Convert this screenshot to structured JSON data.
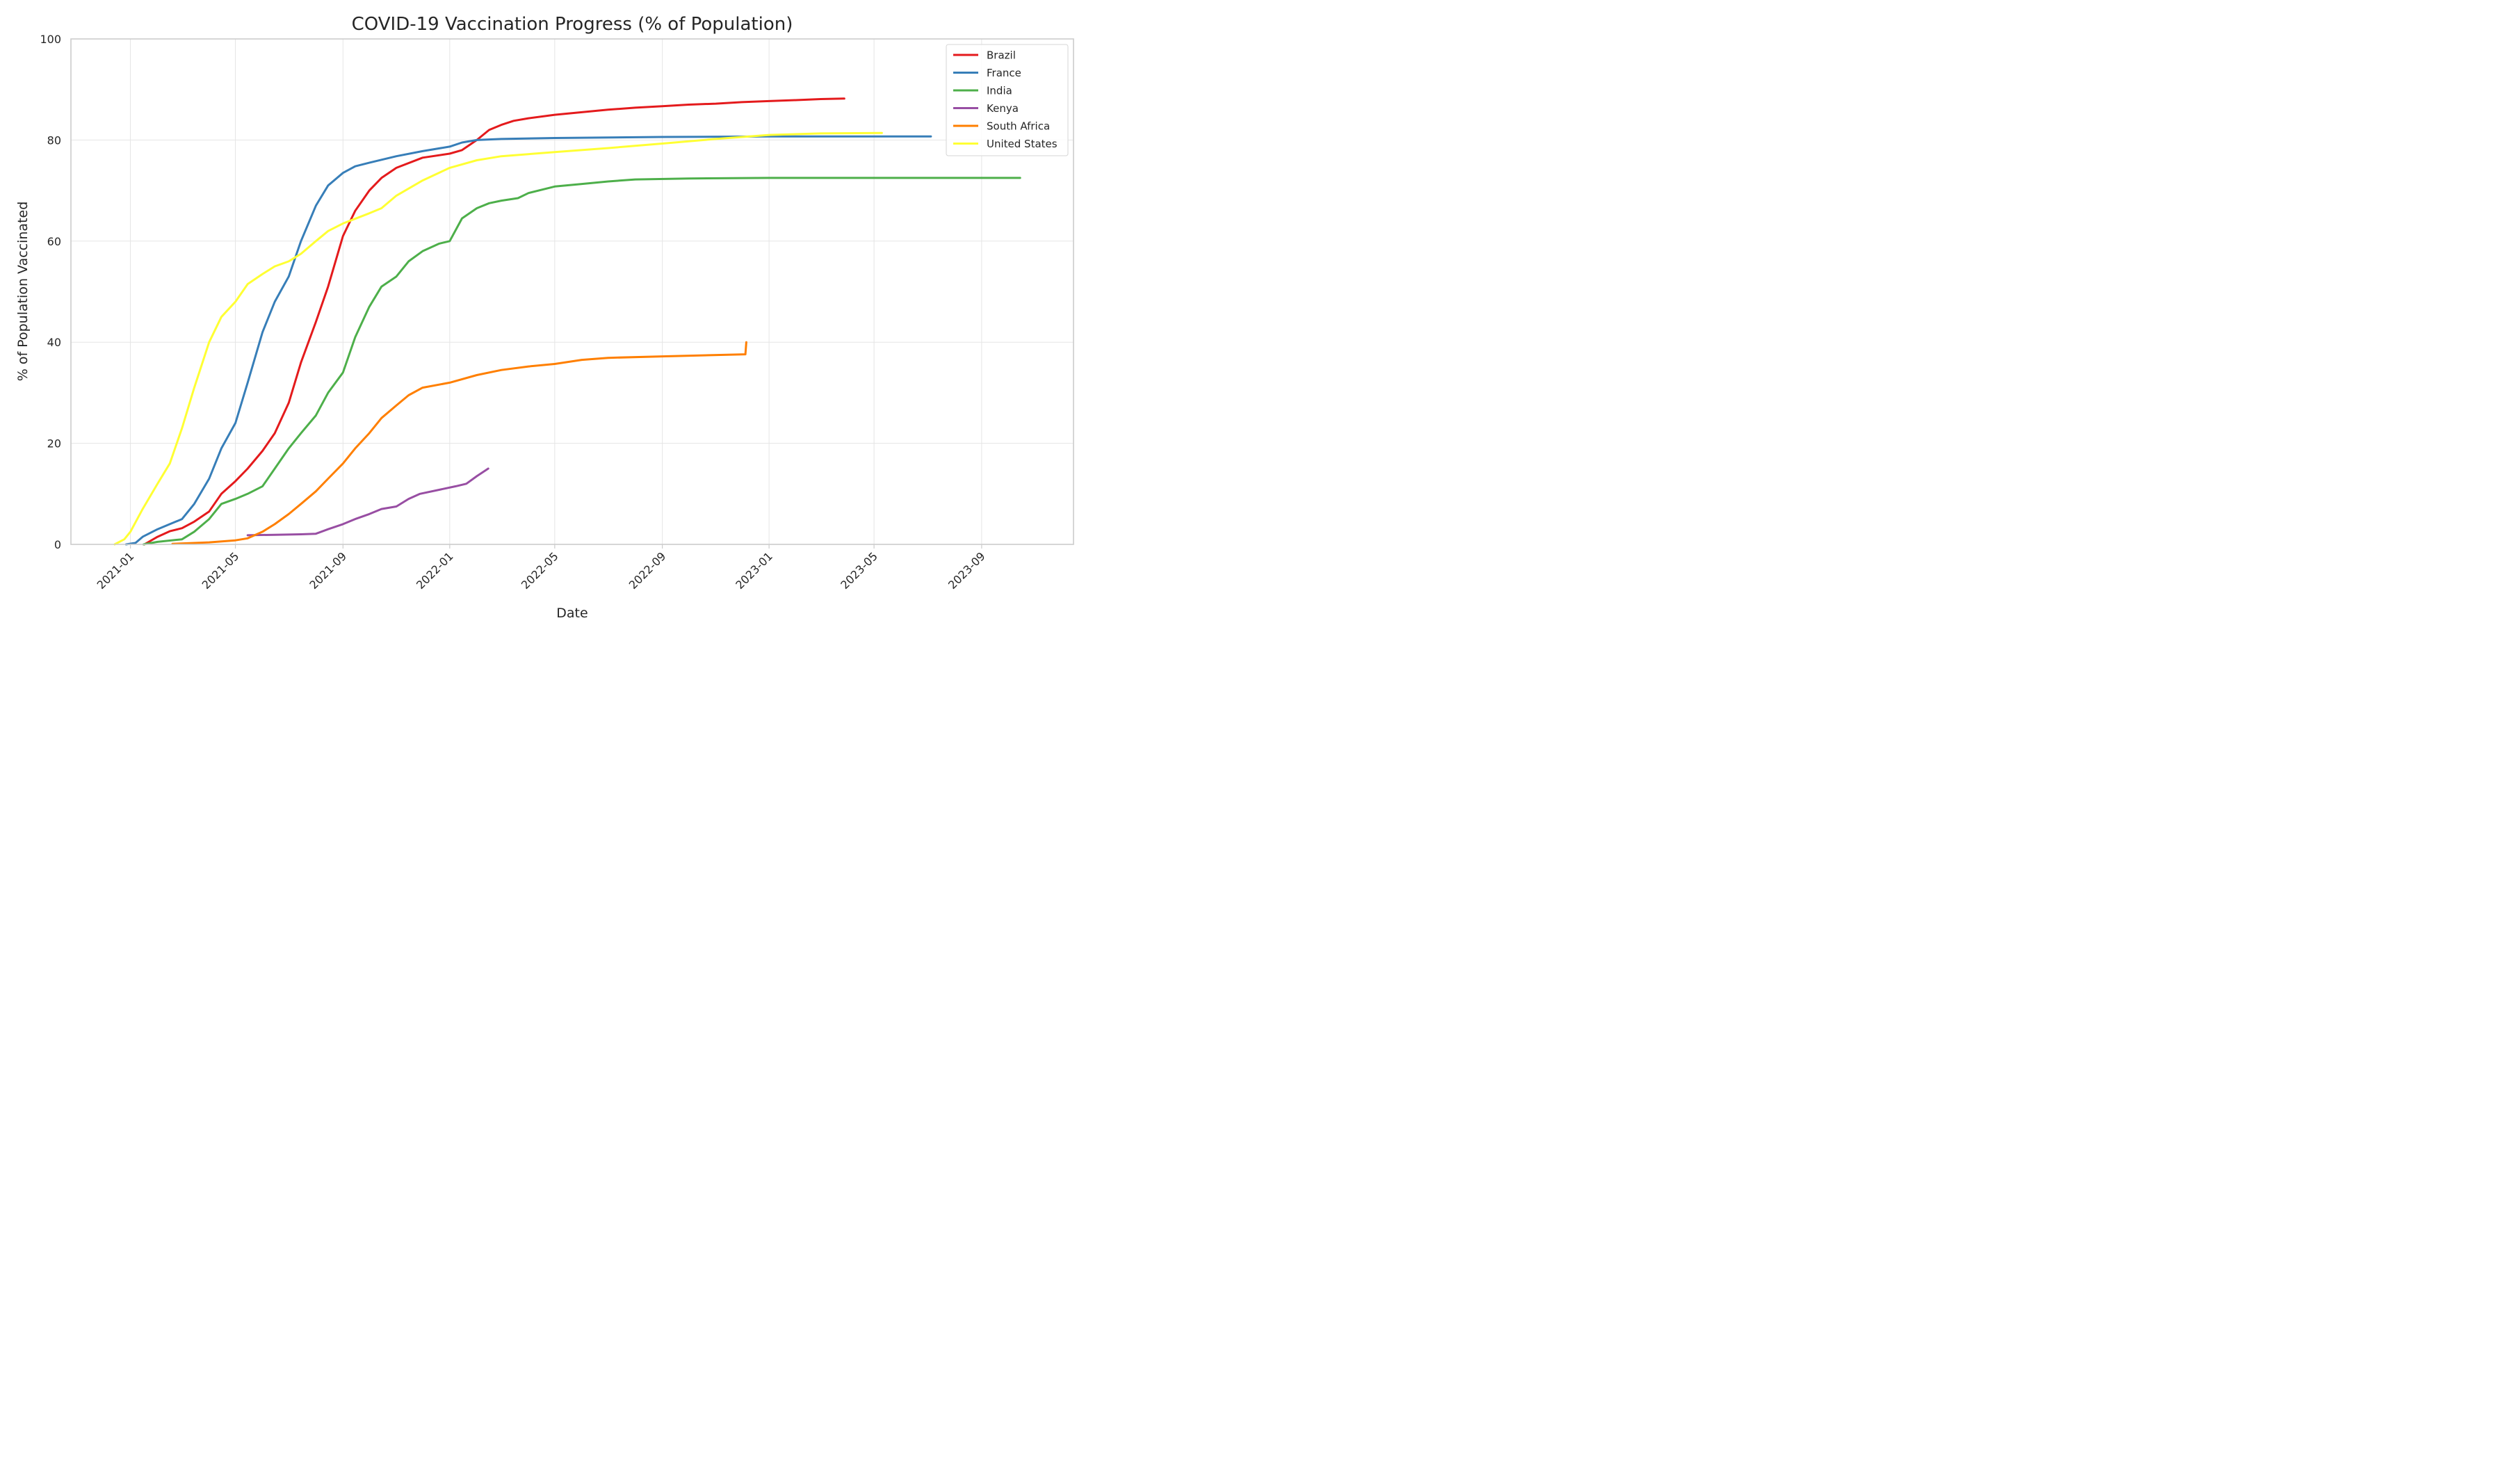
{
  "chart_data": {
    "type": "line",
    "title": "COVID-19 Vaccination Progress (% of Population)",
    "xlabel": "Date",
    "ylabel": "% of Population Vaccinated",
    "xlim": [
      "2020-10-25",
      "2023-12-15"
    ],
    "ylim": [
      0,
      100
    ],
    "yticks": [
      0,
      20,
      40,
      60,
      80,
      100
    ],
    "xticks": [
      "2021-01",
      "2021-05",
      "2021-09",
      "2022-01",
      "2022-05",
      "2022-09",
      "2023-01",
      "2023-05",
      "2023-09"
    ],
    "grid": true,
    "legend_position": "top-right",
    "series": [
      {
        "name": "Brazil",
        "color": "#e41a1c",
        "points": [
          [
            "2021-01-17",
            0
          ],
          [
            "2021-02-01",
            1.5
          ],
          [
            "2021-02-15",
            2.6
          ],
          [
            "2021-03-01",
            3.2
          ],
          [
            "2021-03-15",
            4.5
          ],
          [
            "2021-04-01",
            6.5
          ],
          [
            "2021-04-15",
            10
          ],
          [
            "2021-05-01",
            12.5
          ],
          [
            "2021-05-15",
            15
          ],
          [
            "2021-06-01",
            18.5
          ],
          [
            "2021-06-15",
            22
          ],
          [
            "2021-07-01",
            28
          ],
          [
            "2021-07-15",
            36
          ],
          [
            "2021-08-01",
            44
          ],
          [
            "2021-08-15",
            51
          ],
          [
            "2021-09-01",
            61
          ],
          [
            "2021-09-15",
            66
          ],
          [
            "2021-10-01",
            70
          ],
          [
            "2021-10-15",
            72.5
          ],
          [
            "2021-11-01",
            74.5
          ],
          [
            "2021-12-01",
            76.5
          ],
          [
            "2022-01-01",
            77.3
          ],
          [
            "2022-01-15",
            78
          ],
          [
            "2022-02-01",
            80
          ],
          [
            "2022-02-15",
            82
          ],
          [
            "2022-03-01",
            83
          ],
          [
            "2022-03-15",
            83.8
          ],
          [
            "2022-04-01",
            84.3
          ],
          [
            "2022-05-01",
            85
          ],
          [
            "2022-06-01",
            85.5
          ],
          [
            "2022-07-01",
            86
          ],
          [
            "2022-08-01",
            86.4
          ],
          [
            "2022-09-01",
            86.7
          ],
          [
            "2022-10-01",
            87
          ],
          [
            "2022-11-01",
            87.2
          ],
          [
            "2022-12-01",
            87.5
          ],
          [
            "2023-01-01",
            87.7
          ],
          [
            "2023-02-01",
            87.9
          ],
          [
            "2023-03-01",
            88.1
          ],
          [
            "2023-03-28",
            88.2
          ]
        ]
      },
      {
        "name": "France",
        "color": "#377eb8",
        "points": [
          [
            "2020-12-27",
            0
          ],
          [
            "2021-01-07",
            0.3
          ],
          [
            "2021-01-15",
            1.5
          ],
          [
            "2021-02-01",
            3
          ],
          [
            "2021-02-15",
            4
          ],
          [
            "2021-03-01",
            5
          ],
          [
            "2021-03-15",
            8
          ],
          [
            "2021-04-01",
            13
          ],
          [
            "2021-04-15",
            19
          ],
          [
            "2021-05-01",
            24
          ],
          [
            "2021-05-15",
            32
          ],
          [
            "2021-06-01",
            42
          ],
          [
            "2021-06-15",
            48
          ],
          [
            "2021-07-01",
            53
          ],
          [
            "2021-07-15",
            60
          ],
          [
            "2021-08-01",
            67
          ],
          [
            "2021-08-15",
            71
          ],
          [
            "2021-09-01",
            73.5
          ],
          [
            "2021-09-15",
            74.8
          ],
          [
            "2021-10-01",
            75.5
          ],
          [
            "2021-11-01",
            76.8
          ],
          [
            "2021-12-01",
            77.8
          ],
          [
            "2022-01-01",
            78.7
          ],
          [
            "2022-01-15",
            79.5
          ],
          [
            "2022-02-01",
            80
          ],
          [
            "2022-03-01",
            80.2
          ],
          [
            "2022-05-01",
            80.4
          ],
          [
            "2022-09-01",
            80.6
          ],
          [
            "2023-01-01",
            80.7
          ],
          [
            "2023-07-05",
            80.7
          ]
        ]
      },
      {
        "name": "India",
        "color": "#4daf4a",
        "points": [
          [
            "2021-01-16",
            0
          ],
          [
            "2021-02-01",
            0.5
          ],
          [
            "2021-03-01",
            1
          ],
          [
            "2021-03-15",
            2.5
          ],
          [
            "2021-04-01",
            5
          ],
          [
            "2021-04-15",
            8
          ],
          [
            "2021-05-01",
            9
          ],
          [
            "2021-05-15",
            10
          ],
          [
            "2021-06-01",
            11.5
          ],
          [
            "2021-06-15",
            15
          ],
          [
            "2021-07-01",
            19
          ],
          [
            "2021-07-15",
            22
          ],
          [
            "2021-08-01",
            25.5
          ],
          [
            "2021-08-15",
            30
          ],
          [
            "2021-09-01",
            34
          ],
          [
            "2021-09-15",
            41
          ],
          [
            "2021-10-01",
            47
          ],
          [
            "2021-10-15",
            51
          ],
          [
            "2021-11-01",
            53
          ],
          [
            "2021-11-15",
            56
          ],
          [
            "2021-12-01",
            58
          ],
          [
            "2021-12-20",
            59.5
          ],
          [
            "2022-01-01",
            60
          ],
          [
            "2022-01-15",
            64.5
          ],
          [
            "2022-02-01",
            66.5
          ],
          [
            "2022-02-15",
            67.5
          ],
          [
            "2022-03-01",
            68
          ],
          [
            "2022-03-20",
            68.5
          ],
          [
            "2022-04-01",
            69.5
          ],
          [
            "2022-05-01",
            70.8
          ],
          [
            "2022-06-01",
            71.3
          ],
          [
            "2022-07-01",
            71.8
          ],
          [
            "2022-08-01",
            72.2
          ],
          [
            "2022-10-01",
            72.4
          ],
          [
            "2023-01-01",
            72.5
          ],
          [
            "2023-10-15",
            72.5
          ]
        ]
      },
      {
        "name": "Kenya",
        "color": "#984ea3",
        "points": [
          [
            "2021-05-15",
            1.8
          ],
          [
            "2021-06-15",
            1.9
          ],
          [
            "2021-07-15",
            2
          ],
          [
            "2021-08-01",
            2.1
          ],
          [
            "2021-08-15",
            3
          ],
          [
            "2021-09-01",
            4
          ],
          [
            "2021-09-15",
            5
          ],
          [
            "2021-10-01",
            6
          ],
          [
            "2021-10-15",
            7
          ],
          [
            "2021-11-01",
            7.5
          ],
          [
            "2021-11-15",
            9
          ],
          [
            "2021-11-28",
            10
          ],
          [
            "2022-01-08",
            11.5
          ],
          [
            "2022-01-20",
            12
          ],
          [
            "2022-02-01",
            13.5
          ],
          [
            "2022-02-14",
            15
          ]
        ]
      },
      {
        "name": "South Africa",
        "color": "#ff7f00",
        "points": [
          [
            "2021-02-18",
            0.1
          ],
          [
            "2021-04-01",
            0.4
          ],
          [
            "2021-05-01",
            0.8
          ],
          [
            "2021-05-15",
            1.2
          ],
          [
            "2021-06-01",
            2.5
          ],
          [
            "2021-06-15",
            4
          ],
          [
            "2021-07-01",
            6
          ],
          [
            "2021-07-15",
            8
          ],
          [
            "2021-08-01",
            10.5
          ],
          [
            "2021-08-15",
            13
          ],
          [
            "2021-09-01",
            16
          ],
          [
            "2021-09-15",
            19
          ],
          [
            "2021-10-01",
            22
          ],
          [
            "2021-10-15",
            25
          ],
          [
            "2021-11-01",
            27.5
          ],
          [
            "2021-11-15",
            29.5
          ],
          [
            "2021-12-01",
            31
          ],
          [
            "2022-01-01",
            32
          ],
          [
            "2022-02-01",
            33.5
          ],
          [
            "2022-03-01",
            34.5
          ],
          [
            "2022-04-01",
            35.2
          ],
          [
            "2022-05-01",
            35.7
          ],
          [
            "2022-06-01",
            36.5
          ],
          [
            "2022-07-01",
            36.9
          ],
          [
            "2022-09-01",
            37.2
          ],
          [
            "2022-12-05",
            37.6
          ],
          [
            "2022-12-06",
            40
          ]
        ]
      },
      {
        "name": "United States",
        "color": "#ffff33",
        "points": [
          [
            "2020-12-14",
            0
          ],
          [
            "2020-12-25",
            1
          ],
          [
            "2021-01-01",
            2.5
          ],
          [
            "2021-01-15",
            7
          ],
          [
            "2021-02-01",
            12
          ],
          [
            "2021-02-15",
            16
          ],
          [
            "2021-03-01",
            23
          ],
          [
            "2021-03-15",
            31
          ],
          [
            "2021-04-01",
            40
          ],
          [
            "2021-04-15",
            45
          ],
          [
            "2021-05-01",
            48
          ],
          [
            "2021-05-15",
            51.5
          ],
          [
            "2021-06-01",
            53.5
          ],
          [
            "2021-06-15",
            55
          ],
          [
            "2021-07-01",
            56
          ],
          [
            "2021-07-15",
            57.5
          ],
          [
            "2021-08-01",
            60
          ],
          [
            "2021-08-15",
            62
          ],
          [
            "2021-09-01",
            63.5
          ],
          [
            "2021-10-01",
            65.5
          ],
          [
            "2021-10-15",
            66.5
          ],
          [
            "2021-11-01",
            69
          ],
          [
            "2021-12-01",
            72
          ],
          [
            "2022-01-01",
            74.5
          ],
          [
            "2022-02-01",
            76
          ],
          [
            "2022-03-01",
            76.8
          ],
          [
            "2022-05-01",
            77.6
          ],
          [
            "2022-07-01",
            78.4
          ],
          [
            "2022-09-01",
            79.3
          ],
          [
            "2022-11-01",
            80.2
          ],
          [
            "2023-01-01",
            81
          ],
          [
            "2023-03-01",
            81.3
          ],
          [
            "2023-05-10",
            81.4
          ]
        ]
      }
    ]
  }
}
